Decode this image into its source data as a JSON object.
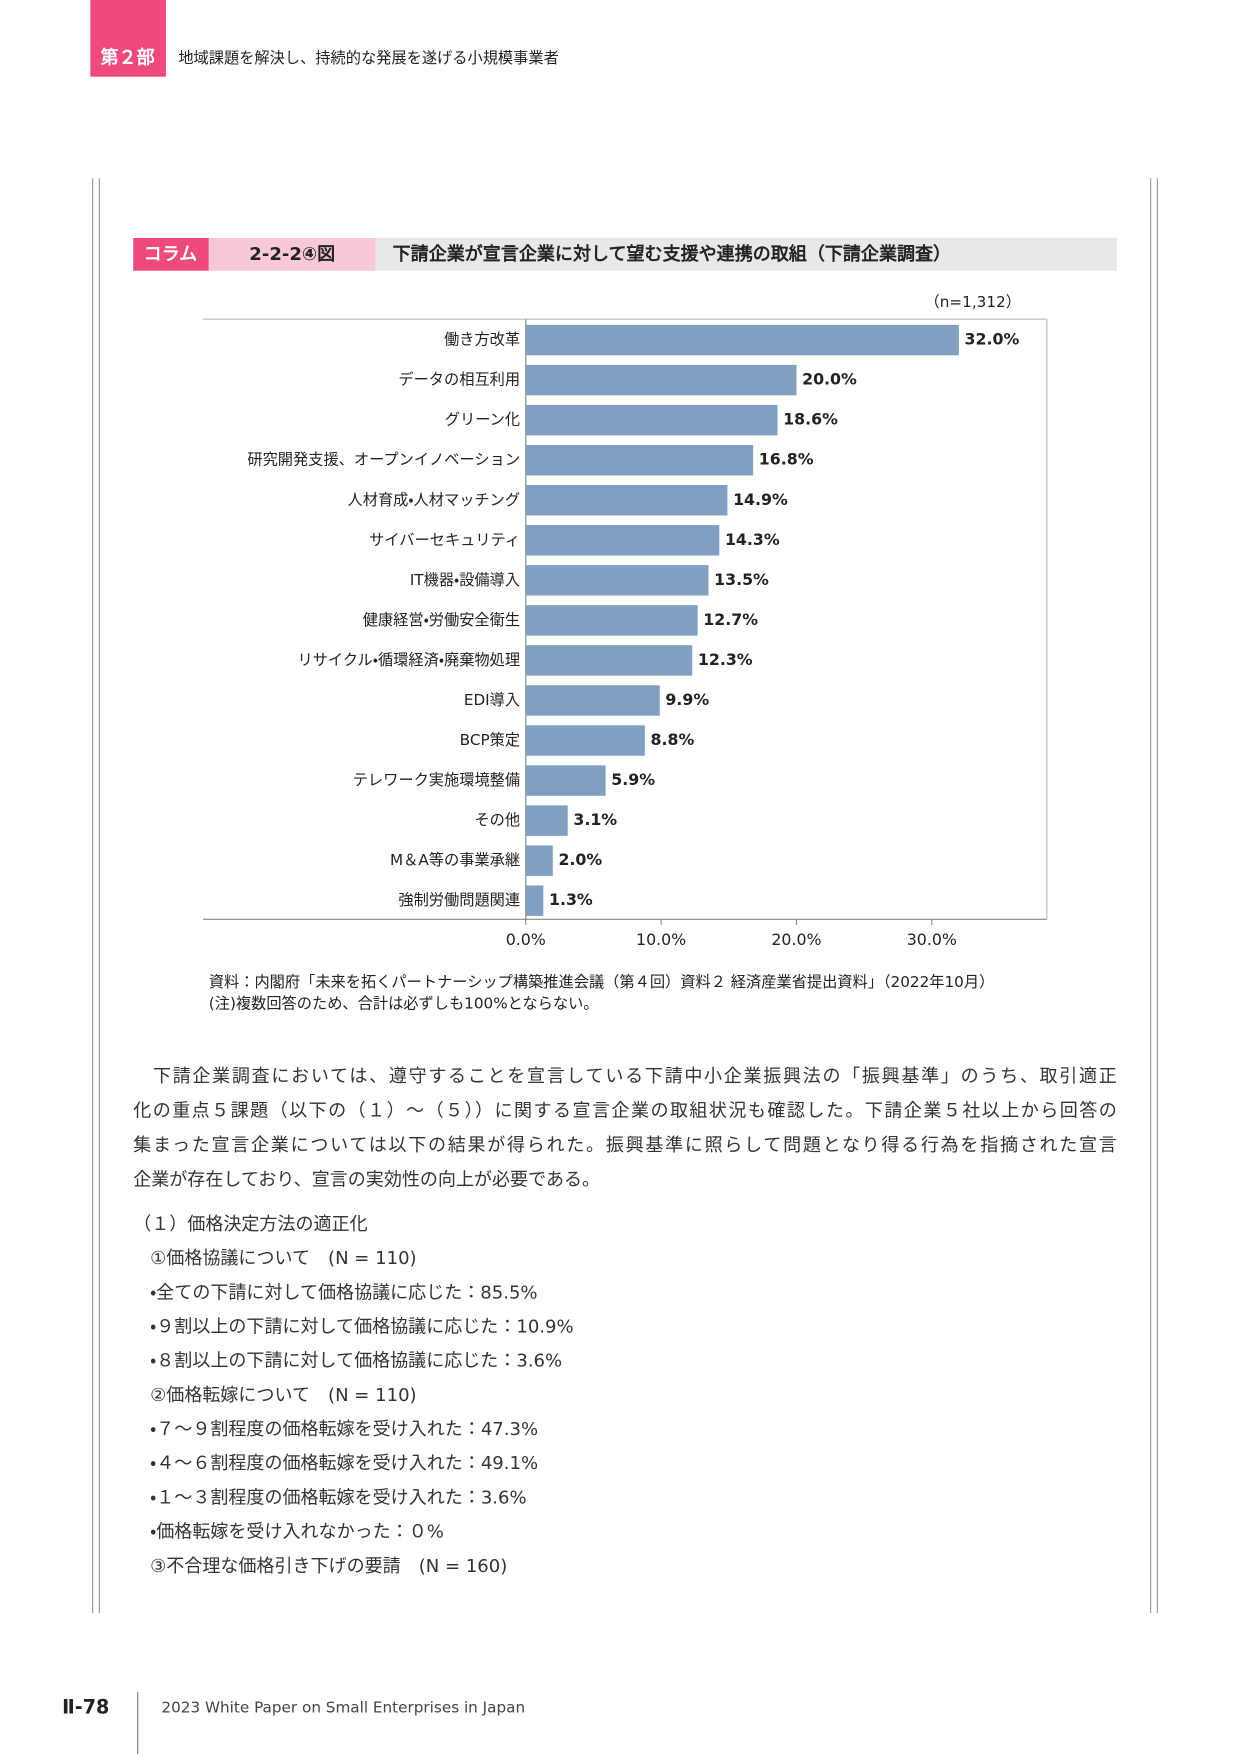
{
  "header": {
    "part": "第２部",
    "title": "地域課題を解決し、持続的な発展を遂げる小規模事業者"
  },
  "figure": {
    "tag": "コラム",
    "number": "2-2-2④図",
    "title": "下請企業が宣言企業に対して望む支援や連携の取組（下請企業調査）"
  },
  "chart_data": {
    "type": "bar",
    "orientation": "horizontal",
    "annotation": "（n=1,312）",
    "categories": [
      "働き方改革",
      "データの相互利用",
      "グリーン化",
      "研究開発支援、オープンイノベーション",
      "人材育成・人材マッチング",
      "サイバーセキュリティ",
      "IT機器・設備導入",
      "健康経営・労働安全衛生",
      "リサイクル・循環経済・廃棄物処理",
      "EDI導入",
      "BCP策定",
      "テレワーク実施環境整備",
      "その他",
      "M＆A等の事業承継",
      "強制労働問題関連"
    ],
    "values": [
      32.0,
      20.0,
      18.6,
      16.8,
      14.9,
      14.3,
      13.5,
      12.7,
      12.3,
      9.9,
      8.8,
      5.9,
      3.1,
      2.0,
      1.3
    ],
    "value_labels": [
      "32.0%",
      "20.0%",
      "18.6%",
      "16.8%",
      "14.9%",
      "14.3%",
      "13.5%",
      "12.7%",
      "12.3%",
      "9.9%",
      "8.8%",
      "5.9%",
      "3.1%",
      "2.0%",
      "1.3%"
    ],
    "color": "#819fc1",
    "xlim": [
      0,
      38.5
    ],
    "xticks": [
      {
        "value": 0,
        "label": "0.0%"
      },
      {
        "value": 10,
        "label": "10.0%"
      },
      {
        "value": 20,
        "label": "20.0%"
      },
      {
        "value": 30,
        "label": "30.0%"
      }
    ]
  },
  "notes": [
    "資料：内閣府「未来を拓くパートナーシップ構築推進会議（第４回）資料２ 経済産業省提出資料」（2022年10月）",
    "(注)複数回答のため、合計は必ずしも100%とならない。"
  ],
  "paragraph": [
    "　下請企業調査においては、遵守することを宣言している下請中小企業振興法の「振興基準」のうち、取引適正",
    "化の重点５課題（以下の（１）～（５））に関する宣言企業の取組状況も確認した。下請企業５社以上から回答の",
    "集まった宣言企業については以下の結果が得られた。振興基準に照らして問題となり得る行為を指摘された宣言",
    "企業が存在しており、宣言の実効性の向上が必要である。"
  ],
  "list": [
    "（１）価格決定方法の適正化",
    "①価格協議について　(N = 110)",
    "・全ての下請に対して価格協議に応じた：85.5%",
    "・９割以上の下請に対して価格協議に応じた：10.9%",
    "・８割以上の下請に対して価格協議に応じた：3.6%",
    "②価格転嫁について　(N = 110)",
    "・７～９割程度の価格転嫁を受け入れた：47.3%",
    "・４～６割程度の価格転嫁を受け入れた：49.1%",
    "・１～３割程度の価格転嫁を受け入れた：3.6%",
    "・価格転嫁を受け入れなかった：０%",
    "③不合理な価格引き下げの要請　(N = 160)"
  ],
  "footer": {
    "page": "Ⅱ-78",
    "title": "2023 White Paper on Small Enterprises in Japan"
  }
}
